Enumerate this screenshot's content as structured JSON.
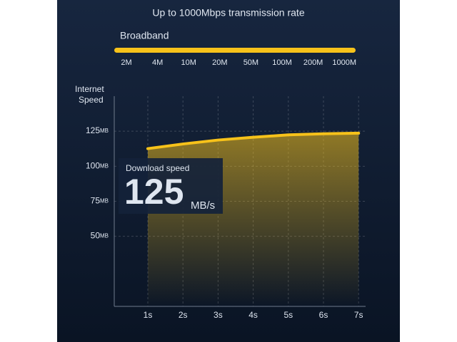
{
  "chart_data": {
    "type": "line",
    "title": "Up to 1000Mbps transmission rate",
    "broadband": {
      "label": "Broadband",
      "categories": [
        "2M",
        "4M",
        "10M",
        "20M",
        "50M",
        "100M",
        "200M",
        "1000M"
      ],
      "color": "#f7c21a"
    },
    "y_label": [
      "Internet",
      "Speed"
    ],
    "categories": [
      "1s",
      "2s",
      "3s",
      "4s",
      "5s",
      "6s",
      "7s"
    ],
    "series": [
      {
        "color": "#f7c21a",
        "values": [
          112.6,
          115.9,
          118.7,
          120.7,
          122.4,
          123.2,
          123.6
        ]
      }
    ],
    "ylim": [
      0,
      150
    ],
    "yticks": [
      50,
      75,
      100,
      125
    ],
    "ytick_unit": "MB",
    "grid": true,
    "callout": {
      "label": "Download speed",
      "value": 125,
      "unit": "MB/s"
    }
  }
}
